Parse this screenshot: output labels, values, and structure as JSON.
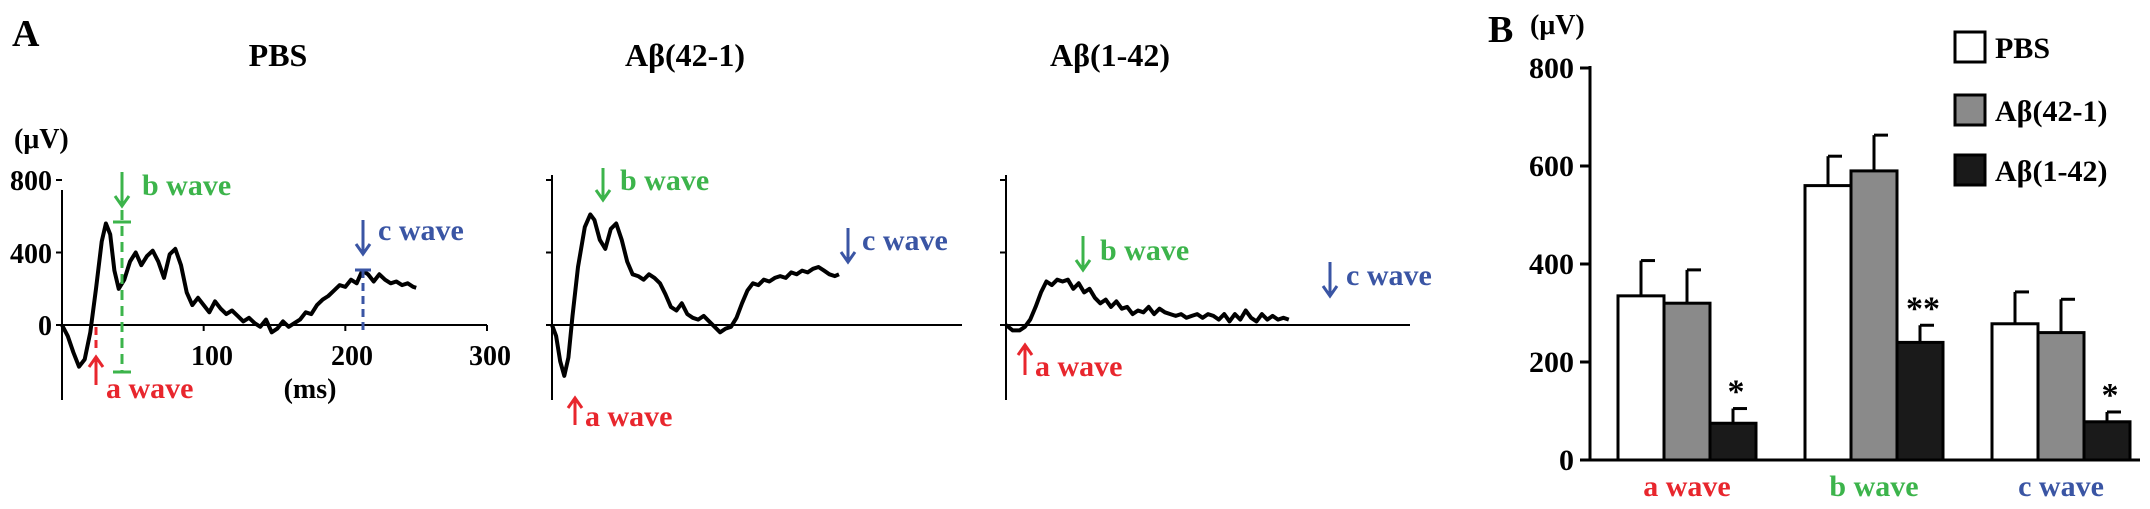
{
  "panel_a": {
    "letter": "A",
    "unit": "(μV)",
    "traces": [
      {
        "title": "PBS",
        "y_ticks": [
          "800",
          "400",
          "0"
        ],
        "x_ticks": [
          "100",
          "200",
          "300"
        ],
        "x_label": "(ms)",
        "labels": {
          "a": "a wave",
          "b": "b wave",
          "c": "c wave"
        },
        "waveform": [
          [
            0,
            0
          ],
          [
            4,
            -60
          ],
          [
            8,
            -150
          ],
          [
            12,
            -230
          ],
          [
            16,
            -190
          ],
          [
            20,
            -40
          ],
          [
            24,
            200
          ],
          [
            28,
            460
          ],
          [
            31,
            560
          ],
          [
            34,
            500
          ],
          [
            37,
            300
          ],
          [
            40,
            200
          ],
          [
            44,
            250
          ],
          [
            48,
            350
          ],
          [
            52,
            400
          ],
          [
            56,
            330
          ],
          [
            60,
            380
          ],
          [
            64,
            410
          ],
          [
            68,
            350
          ],
          [
            72,
            260
          ],
          [
            76,
            390
          ],
          [
            80,
            420
          ],
          [
            84,
            330
          ],
          [
            88,
            180
          ],
          [
            92,
            110
          ],
          [
            96,
            150
          ],
          [
            100,
            110
          ],
          [
            104,
            70
          ],
          [
            108,
            130
          ],
          [
            112,
            90
          ],
          [
            116,
            60
          ],
          [
            120,
            80
          ],
          [
            124,
            50
          ],
          [
            128,
            20
          ],
          [
            132,
            40
          ],
          [
            136,
            10
          ],
          [
            140,
            -10
          ],
          [
            144,
            30
          ],
          [
            148,
            -40
          ],
          [
            152,
            -20
          ],
          [
            156,
            20
          ],
          [
            160,
            -10
          ],
          [
            164,
            10
          ],
          [
            168,
            30
          ],
          [
            172,
            70
          ],
          [
            176,
            60
          ],
          [
            180,
            110
          ],
          [
            184,
            140
          ],
          [
            188,
            160
          ],
          [
            192,
            190
          ],
          [
            196,
            220
          ],
          [
            200,
            210
          ],
          [
            204,
            250
          ],
          [
            208,
            230
          ],
          [
            212,
            300
          ],
          [
            216,
            280
          ],
          [
            220,
            240
          ],
          [
            224,
            280
          ],
          [
            228,
            250
          ],
          [
            232,
            230
          ],
          [
            236,
            240
          ],
          [
            240,
            220
          ],
          [
            244,
            230
          ],
          [
            248,
            210
          ],
          [
            250,
            205
          ]
        ]
      },
      {
        "title": "Aβ(42-1)",
        "waveform": [
          [
            0,
            0
          ],
          [
            3,
            -60
          ],
          [
            6,
            -200
          ],
          [
            9,
            -280
          ],
          [
            12,
            -180
          ],
          [
            15,
            50
          ],
          [
            19,
            320
          ],
          [
            24,
            540
          ],
          [
            28,
            610
          ],
          [
            31,
            580
          ],
          [
            35,
            470
          ],
          [
            39,
            420
          ],
          [
            43,
            530
          ],
          [
            47,
            560
          ],
          [
            51,
            470
          ],
          [
            55,
            350
          ],
          [
            59,
            280
          ],
          [
            63,
            270
          ],
          [
            67,
            250
          ],
          [
            71,
            280
          ],
          [
            75,
            260
          ],
          [
            79,
            230
          ],
          [
            83,
            170
          ],
          [
            87,
            100
          ],
          [
            91,
            80
          ],
          [
            95,
            120
          ],
          [
            99,
            60
          ],
          [
            103,
            40
          ],
          [
            107,
            30
          ],
          [
            111,
            50
          ],
          [
            115,
            20
          ],
          [
            119,
            -10
          ],
          [
            123,
            -40
          ],
          [
            127,
            -20
          ],
          [
            131,
            -10
          ],
          [
            135,
            40
          ],
          [
            139,
            120
          ],
          [
            143,
            190
          ],
          [
            147,
            230
          ],
          [
            151,
            220
          ],
          [
            155,
            250
          ],
          [
            159,
            240
          ],
          [
            163,
            260
          ],
          [
            167,
            270
          ],
          [
            171,
            260
          ],
          [
            175,
            290
          ],
          [
            179,
            280
          ],
          [
            183,
            300
          ],
          [
            187,
            290
          ],
          [
            191,
            310
          ],
          [
            195,
            320
          ],
          [
            199,
            300
          ],
          [
            203,
            280
          ],
          [
            207,
            270
          ],
          [
            210,
            280
          ]
        ]
      },
      {
        "title": "Aβ(1-42)",
        "waveform": [
          [
            0,
            0
          ],
          [
            5,
            -30
          ],
          [
            10,
            -30
          ],
          [
            14,
            -10
          ],
          [
            18,
            30
          ],
          [
            22,
            100
          ],
          [
            26,
            180
          ],
          [
            30,
            240
          ],
          [
            34,
            220
          ],
          [
            38,
            250
          ],
          [
            42,
            240
          ],
          [
            46,
            250
          ],
          [
            50,
            200
          ],
          [
            54,
            230
          ],
          [
            58,
            180
          ],
          [
            62,
            200
          ],
          [
            66,
            150
          ],
          [
            70,
            120
          ],
          [
            74,
            140
          ],
          [
            78,
            100
          ],
          [
            82,
            130
          ],
          [
            86,
            90
          ],
          [
            90,
            100
          ],
          [
            94,
            60
          ],
          [
            98,
            80
          ],
          [
            102,
            70
          ],
          [
            106,
            100
          ],
          [
            110,
            60
          ],
          [
            114,
            90
          ],
          [
            118,
            70
          ],
          [
            122,
            60
          ],
          [
            126,
            50
          ],
          [
            130,
            60
          ],
          [
            134,
            40
          ],
          [
            138,
            50
          ],
          [
            142,
            60
          ],
          [
            146,
            40
          ],
          [
            150,
            60
          ],
          [
            154,
            50
          ],
          [
            158,
            30
          ],
          [
            162,
            60
          ],
          [
            166,
            20
          ],
          [
            170,
            60
          ],
          [
            174,
            30
          ],
          [
            178,
            80
          ],
          [
            182,
            40
          ],
          [
            186,
            20
          ],
          [
            190,
            60
          ],
          [
            194,
            30
          ],
          [
            198,
            50
          ],
          [
            202,
            30
          ],
          [
            206,
            40
          ],
          [
            210,
            30
          ]
        ]
      }
    ]
  },
  "chart_data": {
    "type": "bar",
    "letter": "B",
    "ylabel": "(μV)",
    "ylim": [
      0,
      800
    ],
    "y_ticks": [
      0,
      200,
      400,
      600,
      800
    ],
    "categories": [
      "a wave",
      "b wave",
      "c wave"
    ],
    "series": [
      {
        "name": "PBS",
        "values": [
          335,
          560,
          278
        ],
        "errors": [
          72,
          60,
          65
        ],
        "color": "#ffffff"
      },
      {
        "name": "Aβ(42-1)",
        "values": [
          320,
          590,
          260
        ],
        "errors": [
          68,
          73,
          68
        ],
        "color": "#8a8a8a"
      },
      {
        "name": "Aβ(1-42)",
        "values": [
          75,
          240,
          78
        ],
        "errors": [
          30,
          35,
          20
        ],
        "color": "#1a1a1a"
      }
    ],
    "significance": [
      "*",
      "**",
      "*"
    ],
    "legend_position": "top-right"
  },
  "colors": {
    "a_wave": "#e8262d",
    "b_wave": "#3cb44b",
    "c_wave": "#3a55a4",
    "trace": "#000000"
  }
}
